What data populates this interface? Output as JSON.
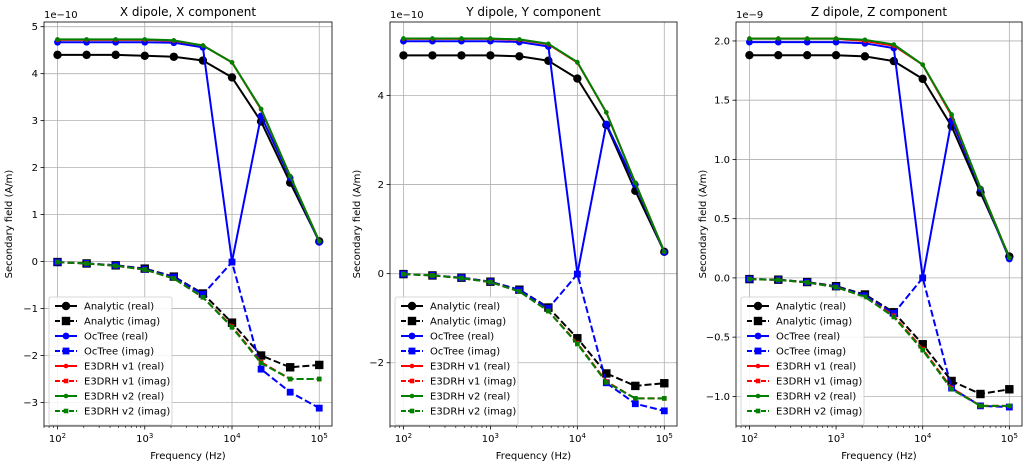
{
  "chart_data": [
    {
      "type": "line",
      "title": "X dipole, X component",
      "xlabel": "Frequency (Hz)",
      "ylabel": "Secondary field (A/m)",
      "y_scale_label": "1e−10",
      "x_scale": "log",
      "grid": true,
      "legend_position": "lower-left",
      "xlim": [
        70,
        140000
      ],
      "ylim": [
        -3.5,
        5.1
      ],
      "yticks": [
        -3,
        -2,
        -1,
        0,
        1,
        2,
        3,
        4,
        5
      ],
      "ytick_labels": [
        "−3",
        "−2",
        "−1",
        "0",
        "1",
        "2",
        "3",
        "4",
        "5"
      ],
      "xticks": [
        100,
        1000,
        10000,
        100000
      ],
      "xtick_labels": [
        {
          "base": "10",
          "exp": "2"
        },
        {
          "base": "10",
          "exp": "3"
        },
        {
          "base": "10",
          "exp": "4"
        },
        {
          "base": "10",
          "exp": "5"
        }
      ],
      "x": [
        100,
        215.4,
        464.2,
        1000,
        2154,
        4642,
        10000,
        21540,
        46420,
        100000
      ],
      "series": [
        {
          "name": "Analytic (real)",
          "color": "#000000",
          "dash": "solid",
          "marker": "circle",
          "marker_size": "large",
          "values": [
            4.4,
            4.4,
            4.4,
            4.38,
            4.36,
            4.28,
            3.92,
            2.98,
            1.68,
            0.43
          ]
        },
        {
          "name": "Analytic (imag)",
          "color": "#000000",
          "dash": "dashed",
          "marker": "square",
          "marker_size": "large",
          "values": [
            -0.01,
            -0.04,
            -0.08,
            -0.15,
            -0.32,
            -0.68,
            -1.3,
            -2.0,
            -2.25,
            -2.2
          ]
        },
        {
          "name": "OcTree (real)",
          "color": "#0000ff",
          "dash": "solid",
          "marker": "circle",
          "marker_size": "medium",
          "values": [
            4.67,
            4.67,
            4.67,
            4.67,
            4.66,
            4.56,
            0.0,
            3.1,
            1.78,
            0.41
          ]
        },
        {
          "name": "OcTree (imag)",
          "color": "#0000ff",
          "dash": "dashed",
          "marker": "square",
          "marker_size": "medium",
          "values": [
            -0.01,
            -0.04,
            -0.08,
            -0.16,
            -0.33,
            -0.7,
            -0.01,
            -2.29,
            -2.78,
            -3.12
          ]
        },
        {
          "name": "E3DRH v1 (real)",
          "color": "#ff0000",
          "dash": "solid",
          "marker": "circle",
          "marker_size": "small",
          "values": [
            4.72,
            4.72,
            4.72,
            4.72,
            4.7,
            4.6,
            4.24,
            3.24,
            1.82,
            0.43
          ]
        },
        {
          "name": "E3DRH v1 (imag)",
          "color": "#ff0000",
          "dash": "dashed",
          "marker": "square",
          "marker_size": "small",
          "values": [
            -0.01,
            -0.04,
            -0.09,
            -0.17,
            -0.36,
            -0.76,
            -1.38,
            -2.14,
            -2.5,
            -2.5
          ]
        },
        {
          "name": "E3DRH v2 (real)",
          "color": "#008000",
          "dash": "solid",
          "marker": "circle",
          "marker_size": "small",
          "values": [
            4.73,
            4.73,
            4.73,
            4.73,
            4.71,
            4.6,
            4.24,
            3.25,
            1.82,
            0.43
          ]
        },
        {
          "name": "E3DRH v2 (imag)",
          "color": "#008000",
          "dash": "dashed",
          "marker": "square",
          "marker_size": "small",
          "values": [
            -0.01,
            -0.04,
            -0.09,
            -0.17,
            -0.36,
            -0.76,
            -1.4,
            -2.16,
            -2.5,
            -2.5
          ]
        }
      ]
    },
    {
      "type": "line",
      "title": "Y dipole, Y component",
      "xlabel": "Frequency (Hz)",
      "ylabel": "Secondary field (A/m)",
      "y_scale_label": "1e−10",
      "x_scale": "log",
      "grid": true,
      "legend_position": "lower-left",
      "xlim": [
        70,
        140000
      ],
      "ylim": [
        -3.42,
        5.65
      ],
      "yticks": [
        -2,
        0,
        2,
        4
      ],
      "ytick_labels": [
        "−2",
        "0",
        "2",
        "4"
      ],
      "xticks": [
        100,
        1000,
        10000,
        100000
      ],
      "xtick_labels": [
        {
          "base": "10",
          "exp": "2"
        },
        {
          "base": "10",
          "exp": "3"
        },
        {
          "base": "10",
          "exp": "4"
        },
        {
          "base": "10",
          "exp": "5"
        }
      ],
      "x": [
        100,
        215.4,
        464.2,
        1000,
        2154,
        4642,
        10000,
        21540,
        46420,
        100000
      ],
      "series": [
        {
          "name": "Analytic (real)",
          "color": "#000000",
          "dash": "solid",
          "marker": "circle",
          "marker_size": "large",
          "values": [
            4.9,
            4.9,
            4.9,
            4.9,
            4.88,
            4.78,
            4.38,
            3.34,
            1.86,
            0.49
          ]
        },
        {
          "name": "Analytic (imag)",
          "color": "#000000",
          "dash": "dashed",
          "marker": "square",
          "marker_size": "large",
          "values": [
            -0.01,
            -0.04,
            -0.09,
            -0.18,
            -0.36,
            -0.76,
            -1.45,
            -2.24,
            -2.52,
            -2.46
          ]
        },
        {
          "name": "OcTree (real)",
          "color": "#0000ff",
          "dash": "solid",
          "marker": "circle",
          "marker_size": "medium",
          "values": [
            5.22,
            5.22,
            5.22,
            5.22,
            5.2,
            5.1,
            0.0,
            3.36,
            2.0,
            0.48
          ]
        },
        {
          "name": "OcTree (imag)",
          "color": "#0000ff",
          "dash": "dashed",
          "marker": "square",
          "marker_size": "medium",
          "values": [
            -0.01,
            -0.04,
            -0.09,
            -0.18,
            -0.37,
            -0.78,
            -0.01,
            -2.45,
            -2.92,
            -3.08
          ]
        },
        {
          "name": "E3DRH v1 (real)",
          "color": "#ff0000",
          "dash": "solid",
          "marker": "circle",
          "marker_size": "small",
          "values": [
            5.27,
            5.27,
            5.27,
            5.27,
            5.25,
            5.15,
            4.74,
            3.62,
            2.04,
            0.49
          ]
        },
        {
          "name": "E3DRH v1 (imag)",
          "color": "#ff0000",
          "dash": "dashed",
          "marker": "square",
          "marker_size": "small",
          "values": [
            -0.01,
            -0.04,
            -0.1,
            -0.19,
            -0.4,
            -0.84,
            -1.56,
            -2.42,
            -2.8,
            -2.8
          ]
        },
        {
          "name": "E3DRH v2 (real)",
          "color": "#008000",
          "dash": "solid",
          "marker": "circle",
          "marker_size": "small",
          "values": [
            5.28,
            5.28,
            5.28,
            5.28,
            5.26,
            5.16,
            4.75,
            3.62,
            2.04,
            0.49
          ]
        },
        {
          "name": "E3DRH v2 (imag)",
          "color": "#008000",
          "dash": "dashed",
          "marker": "square",
          "marker_size": "small",
          "values": [
            -0.01,
            -0.04,
            -0.1,
            -0.19,
            -0.4,
            -0.84,
            -1.58,
            -2.44,
            -2.8,
            -2.8
          ]
        }
      ]
    },
    {
      "type": "line",
      "title": "Z dipole, Z component",
      "xlabel": "Frequency (Hz)",
      "ylabel": "Secondary field (A/m)",
      "y_scale_label": "1e−9",
      "x_scale": "log",
      "grid": true,
      "legend_position": "lower-left",
      "xlim": [
        70,
        140000
      ],
      "ylim": [
        -1.25,
        2.16
      ],
      "yticks": [
        -1.0,
        -0.5,
        0.0,
        0.5,
        1.0,
        1.5,
        2.0
      ],
      "ytick_labels": [
        "−1.0",
        "−0.5",
        "0.0",
        "0.5",
        "1.0",
        "1.5",
        "2.0"
      ],
      "xticks": [
        100,
        1000,
        10000,
        100000
      ],
      "xtick_labels": [
        {
          "base": "10",
          "exp": "2"
        },
        {
          "base": "10",
          "exp": "3"
        },
        {
          "base": "10",
          "exp": "4"
        },
        {
          "base": "10",
          "exp": "5"
        }
      ],
      "x": [
        100,
        215.4,
        464.2,
        1000,
        2154,
        4642,
        10000,
        21540,
        46420,
        100000
      ],
      "series": [
        {
          "name": "Analytic (real)",
          "color": "#000000",
          "dash": "solid",
          "marker": "circle",
          "marker_size": "large",
          "values": [
            1.88,
            1.88,
            1.88,
            1.88,
            1.87,
            1.83,
            1.68,
            1.28,
            0.72,
            0.18
          ]
        },
        {
          "name": "Analytic (imag)",
          "color": "#000000",
          "dash": "dashed",
          "marker": "square",
          "marker_size": "large",
          "values": [
            -0.01,
            -0.015,
            -0.035,
            -0.07,
            -0.14,
            -0.29,
            -0.56,
            -0.87,
            -0.98,
            -0.94
          ]
        },
        {
          "name": "OcTree (real)",
          "color": "#0000ff",
          "dash": "solid",
          "marker": "circle",
          "marker_size": "medium",
          "values": [
            1.99,
            1.99,
            1.99,
            1.99,
            1.98,
            1.94,
            0.0,
            1.33,
            0.75,
            0.16
          ]
        },
        {
          "name": "OcTree (imag)",
          "color": "#0000ff",
          "dash": "dashed",
          "marker": "square",
          "marker_size": "medium",
          "values": [
            -0.01,
            -0.016,
            -0.036,
            -0.074,
            -0.15,
            -0.3,
            0.0,
            -0.93,
            -1.08,
            -1.09
          ]
        },
        {
          "name": "E3DRH v1 (real)",
          "color": "#ff0000",
          "dash": "solid",
          "marker": "circle",
          "marker_size": "small",
          "values": [
            2.02,
            2.02,
            2.02,
            2.02,
            2.0,
            1.96,
            1.8,
            1.37,
            0.76,
            0.17
          ]
        },
        {
          "name": "E3DRH v1 (imag)",
          "color": "#ff0000",
          "dash": "dashed",
          "marker": "square",
          "marker_size": "small",
          "values": [
            -0.01,
            -0.017,
            -0.038,
            -0.078,
            -0.16,
            -0.32,
            -0.6,
            -0.93,
            -1.08,
            -1.08
          ]
        },
        {
          "name": "E3DRH v2 (real)",
          "color": "#008000",
          "dash": "solid",
          "marker": "circle",
          "marker_size": "small",
          "values": [
            2.02,
            2.02,
            2.02,
            2.02,
            2.01,
            1.97,
            1.8,
            1.38,
            0.76,
            0.17
          ]
        },
        {
          "name": "E3DRH v2 (imag)",
          "color": "#008000",
          "dash": "dashed",
          "marker": "square",
          "marker_size": "small",
          "values": [
            -0.01,
            -0.017,
            -0.038,
            -0.078,
            -0.16,
            -0.33,
            -0.61,
            -0.94,
            -1.08,
            -1.08
          ]
        }
      ]
    }
  ]
}
